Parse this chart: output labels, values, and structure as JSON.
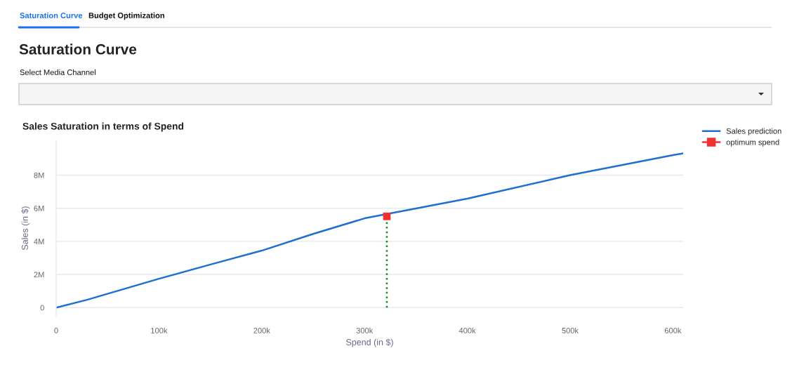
{
  "chart_data": {
    "type": "line",
    "title": "Sales Saturation in terms of Spend",
    "xlabel": "Spend (in $)",
    "ylabel": "Sales (in $)",
    "annotations": [
      "Saturation Curve",
      "Budget Optimization",
      "Saturation Curve",
      "Select Media Channel"
    ],
    "series": [
      {
        "name": "Sales prediction",
        "color": "#1f6fcf",
        "marker": "none",
        "line_style": "solid",
        "x": [
          0,
          30000,
          100000,
          150000,
          200000,
          250000,
          300000,
          400000,
          500000,
          600000,
          610000
        ],
        "values": [
          0,
          470000,
          1740000,
          2600000,
          3440000,
          4450000,
          5390000,
          6580000,
          8000000,
          9210000,
          9320000
        ]
      },
      {
        "name": "optimum spend",
        "type": "scatter",
        "color": "#f03030",
        "marker": "square",
        "x": [
          321700
        ],
        "values": [
          5510000
        ]
      },
      {
        "color": "#1a8a1a",
        "marker": "none",
        "line_style": "dotted",
        "x": [
          321700,
          321700
        ],
        "values": [
          0,
          5510000
        ]
      }
    ],
    "xlim": [
      0,
      610000
    ],
    "xticks": [
      0,
      {
        "value": 100000,
        "label": "100k"
      },
      {
        "value": 200000,
        "label": "200k"
      },
      {
        "value": 300000,
        "label": "300k"
      },
      {
        "value": 400000,
        "label": "400k"
      },
      {
        "value": 500000,
        "label": "500k"
      },
      {
        "value": 600000,
        "label": "600k"
      }
    ],
    "ylim": [
      -500000,
      10100000
    ],
    "yticks": [
      0,
      {
        "value": 2000000,
        "label": "2M"
      },
      {
        "value": 4000000,
        "label": "4M"
      },
      {
        "value": 6000000,
        "label": "6M"
      },
      {
        "value": 8000000,
        "label": "8M"
      }
    ],
    "grid": "y",
    "legend": "top right"
  }
}
